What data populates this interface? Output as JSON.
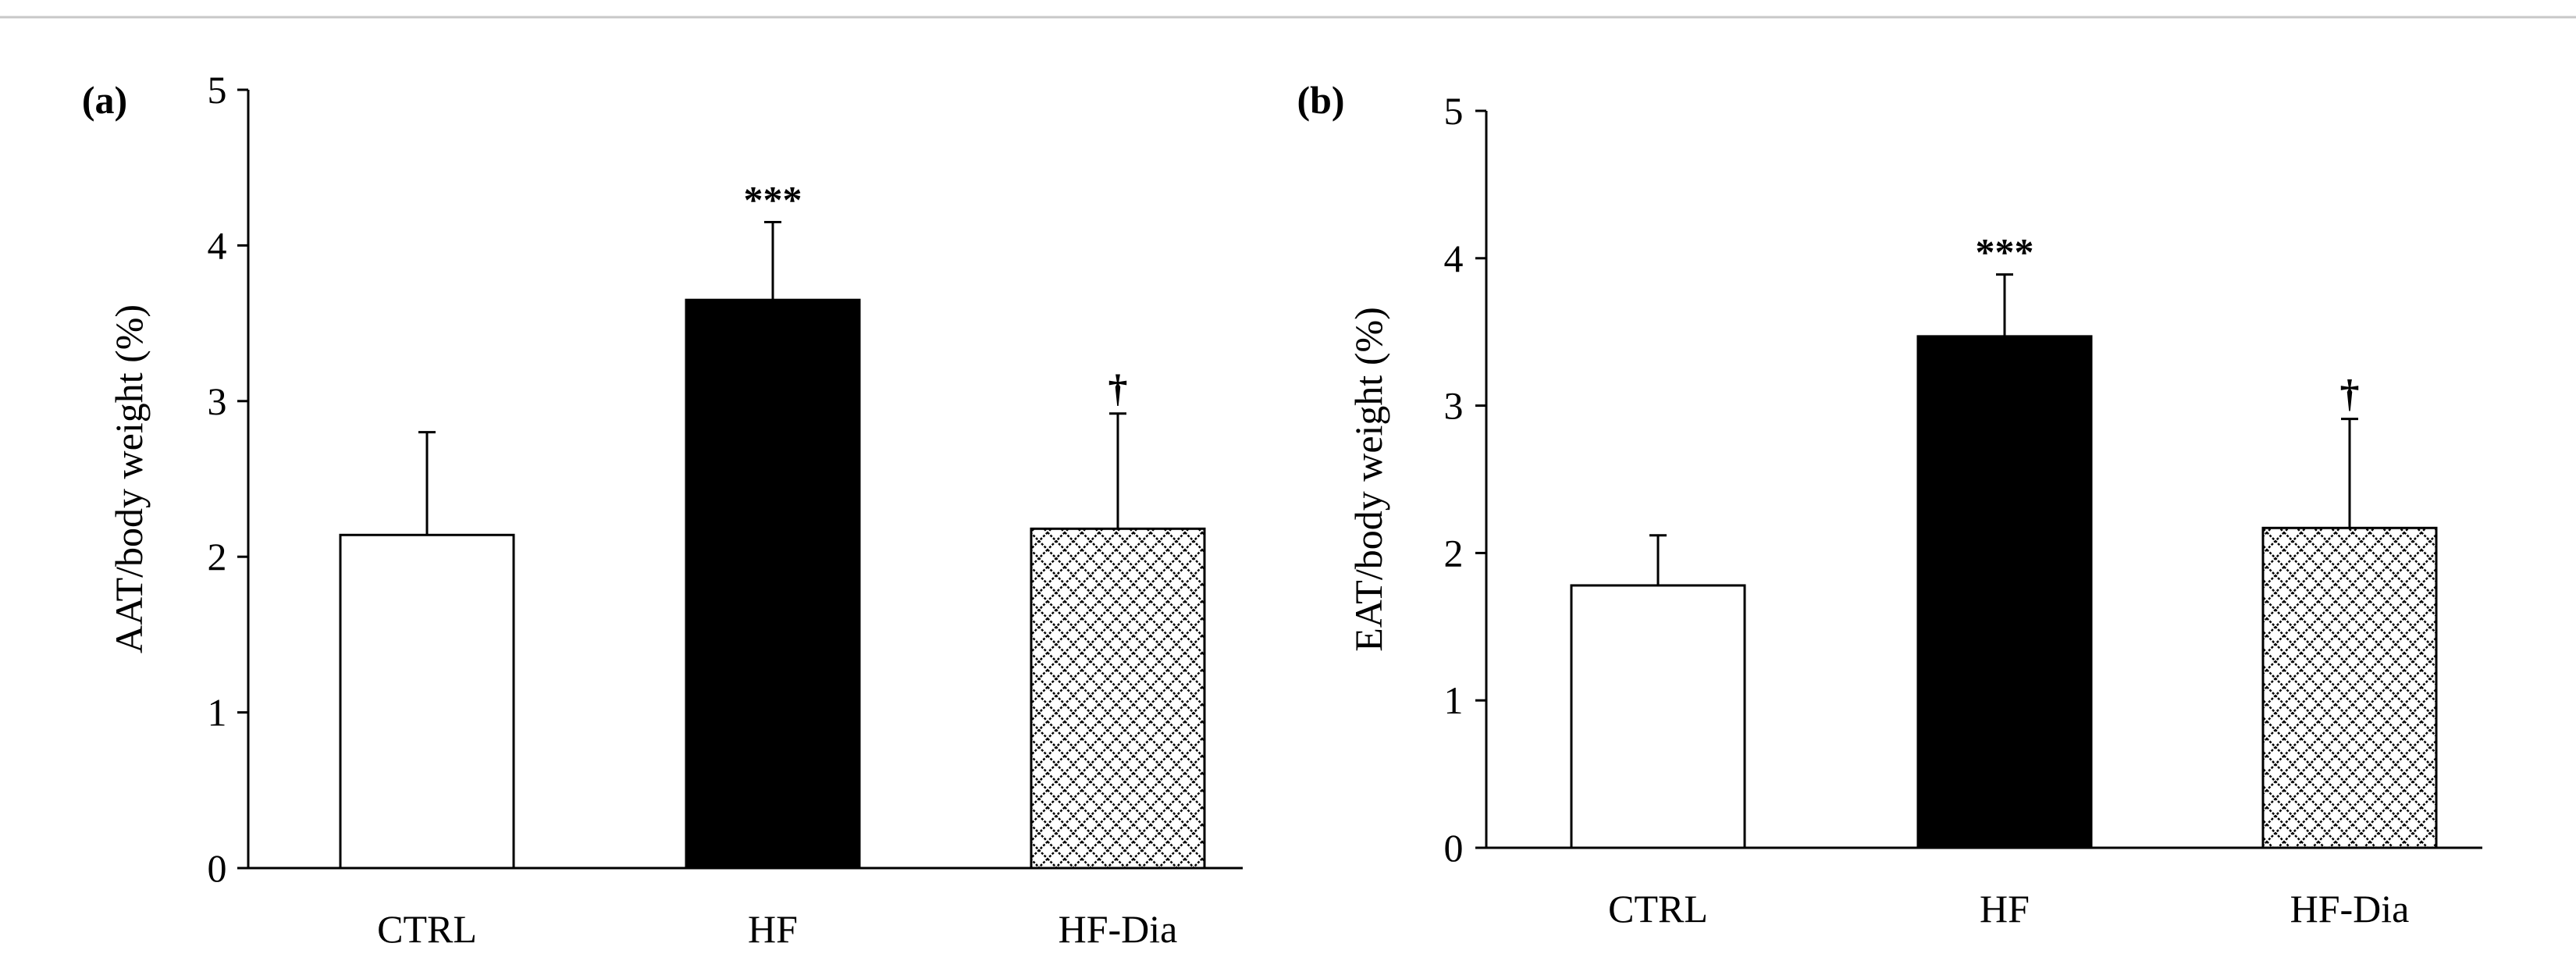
{
  "chart_data": [
    {
      "type": "bar",
      "panel_label": "(a)",
      "ylabel": "AAT/body weight (%)",
      "xlabel": "",
      "ylim": [
        0,
        5
      ],
      "yticks": [
        "0",
        "1",
        "2",
        "3",
        "4",
        "5"
      ],
      "categories": [
        "CTRL",
        "HF",
        "HF-Dia"
      ],
      "values": [
        2.14,
        3.65,
        2.18
      ],
      "errors": [
        0.66,
        0.5,
        0.74
      ],
      "annotations": [
        "",
        "***",
        "†"
      ],
      "fills": [
        "white",
        "black",
        "crosshatch"
      ],
      "grid": false,
      "legend": "none"
    },
    {
      "type": "bar",
      "panel_label": "(b)",
      "ylabel": "EAT/body weight (%)",
      "xlabel": "",
      "ylim": [
        0,
        5
      ],
      "yticks": [
        "0",
        "1",
        "2",
        "3",
        "4",
        "5"
      ],
      "categories": [
        "CTRL",
        "HF",
        "HF-Dia"
      ],
      "values": [
        1.78,
        3.47,
        2.17
      ],
      "errors": [
        0.34,
        0.42,
        0.74
      ],
      "annotations": [
        "",
        "***",
        "†"
      ],
      "fills": [
        "white",
        "black",
        "crosshatch"
      ],
      "grid": false,
      "legend": "none"
    }
  ]
}
